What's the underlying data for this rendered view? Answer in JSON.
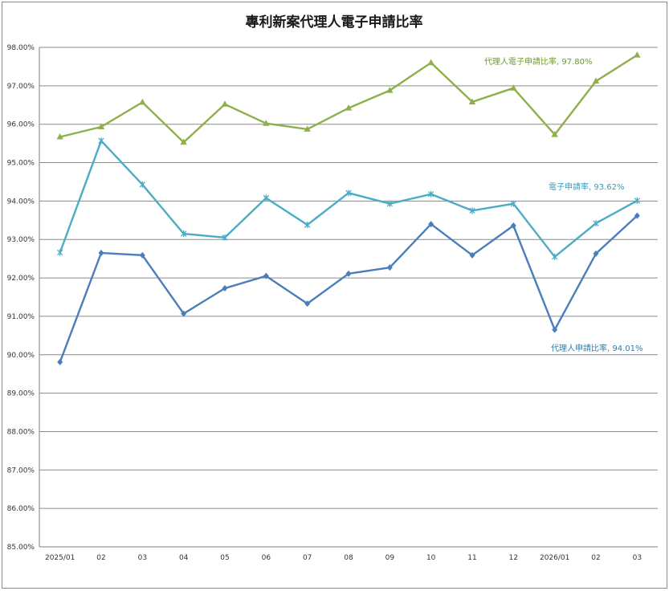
{
  "chart_data": {
    "type": "line",
    "title": "專利新案代理人電子申請比率",
    "categories": [
      "2025/01",
      "02",
      "03",
      "04",
      "05",
      "06",
      "07",
      "08",
      "09",
      "10",
      "11",
      "12",
      "2026/01",
      "02",
      "03"
    ],
    "y_ticks": [
      "85.00%",
      "86.00%",
      "87.00%",
      "88.00%",
      "89.00%",
      "90.00%",
      "91.00%",
      "92.00%",
      "93.00%",
      "94.00%",
      "95.00%",
      "96.00%",
      "97.00%",
      "98.00%"
    ],
    "ylim": [
      85,
      98
    ],
    "grid": true,
    "series": [
      {
        "key": "agent_e",
        "marker": "triangle",
        "color": "#8db04a",
        "values": [
          95.67,
          95.93,
          96.57,
          95.53,
          96.52,
          96.02,
          95.87,
          96.42,
          96.88,
          97.6,
          96.58,
          96.94,
          95.73,
          97.12,
          97.8
        ]
      },
      {
        "key": "e_filing",
        "marker": "star",
        "color": "#4bacc6",
        "values": [
          92.66,
          95.57,
          94.43,
          93.15,
          93.05,
          94.08,
          93.38,
          94.21,
          93.93,
          94.18,
          93.75,
          93.93,
          92.55,
          93.42,
          94.01
        ]
      },
      {
        "key": "agent",
        "marker": "diamond",
        "color": "#4a7ebb",
        "values": [
          89.81,
          92.65,
          92.59,
          91.07,
          91.73,
          92.05,
          91.33,
          92.11,
          92.27,
          93.4,
          92.59,
          93.36,
          90.65,
          92.63,
          93.62
        ]
      }
    ],
    "annotations": [
      {
        "text": "代理人電子申請比率, 97.80%",
        "color": "#6f9a2e"
      },
      {
        "text": "電子申請率, 93.62%",
        "color": "#3a9ab8"
      },
      {
        "text": "代理人申請比率, 94.01%",
        "color": "#2f7ea8"
      }
    ]
  }
}
